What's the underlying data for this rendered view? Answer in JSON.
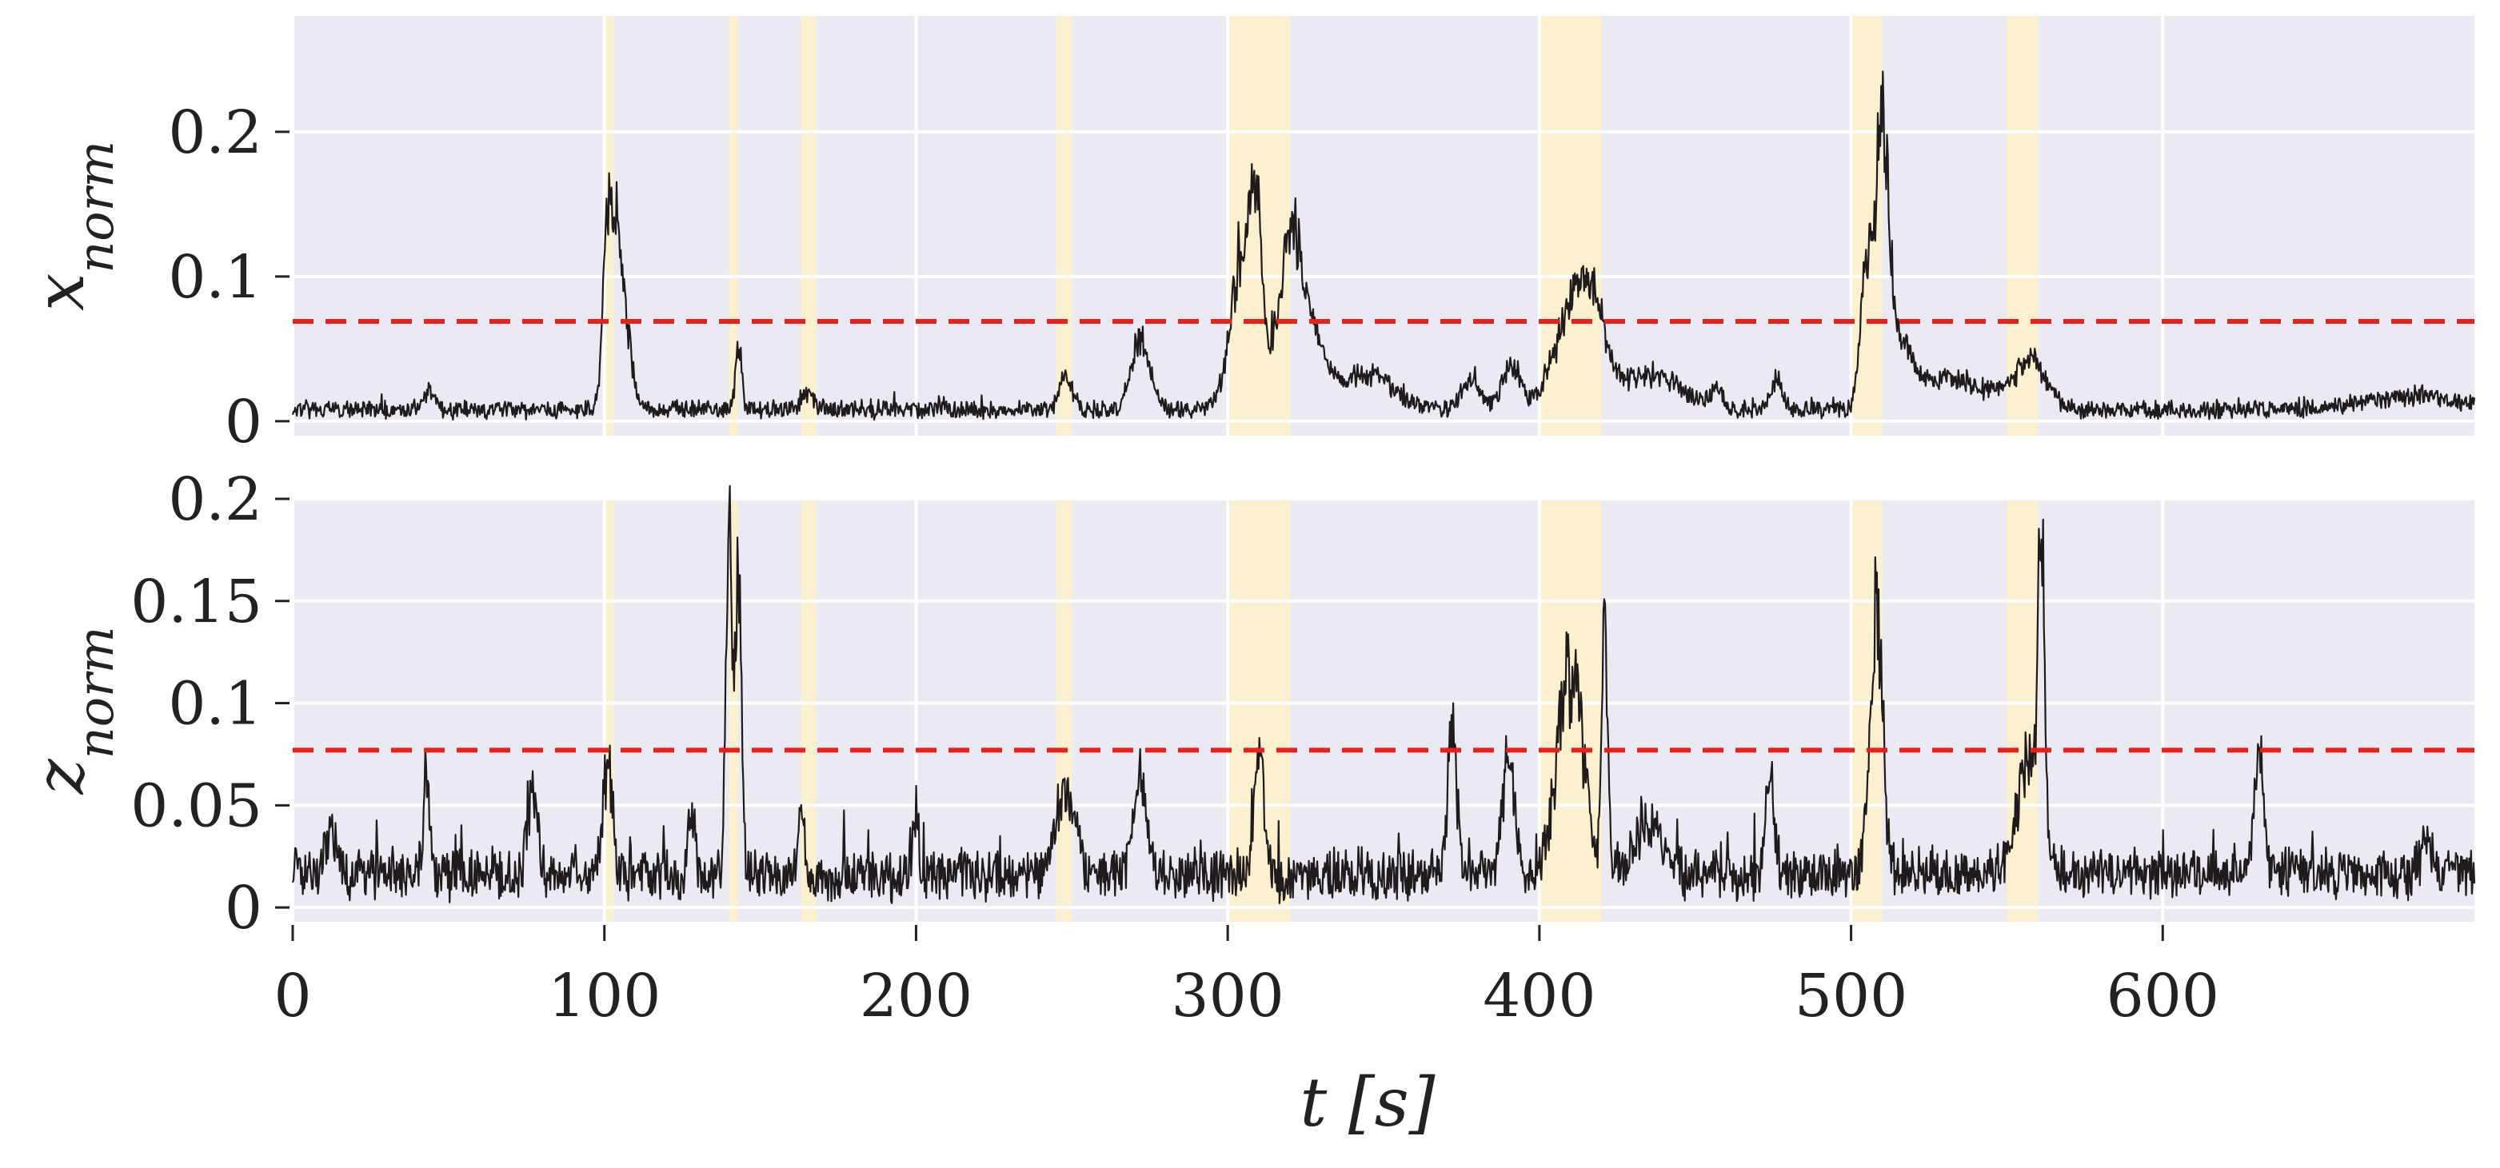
{
  "chart_data": {
    "type": "line",
    "xlabel": "t [s]",
    "xlim": [
      0,
      700
    ],
    "x_ticks": [
      0,
      100,
      200,
      300,
      400,
      500,
      600
    ],
    "x_tick_labels": [
      "0",
      "100",
      "200",
      "300",
      "400",
      "500",
      "600"
    ],
    "grid": true,
    "shaded_intervals": [
      [
        100,
        103
      ],
      [
        140,
        143
      ],
      [
        163,
        168
      ],
      [
        245,
        250
      ],
      [
        300,
        320
      ],
      [
        400,
        420
      ],
      [
        500,
        510
      ],
      [
        550,
        560
      ]
    ],
    "panels": [
      {
        "ylabel_base": "x",
        "ylabel_sub": "norm",
        "ylim": [
          -0.01,
          0.28
        ],
        "y_ticks": [
          0,
          0.1,
          0.2
        ],
        "y_tick_labels": [
          "0",
          "0.1",
          "0.2"
        ],
        "threshold": 0.069,
        "baseline_level": 0.008,
        "noise": 0.006,
        "peaks": [
          {
            "t": 44,
            "h": 0.012,
            "w": 2
          },
          {
            "t": 101,
            "h": 0.12,
            "w": 1.5
          },
          {
            "t": 104,
            "h": 0.105,
            "w": 1.5
          },
          {
            "t": 107,
            "h": 0.05,
            "w": 2
          },
          {
            "t": 143,
            "h": 0.045,
            "w": 1
          },
          {
            "t": 165,
            "h": 0.012,
            "w": 2
          },
          {
            "t": 248,
            "h": 0.025,
            "w": 2
          },
          {
            "t": 272,
            "h": 0.048,
            "w": 3
          },
          {
            "t": 305,
            "h": 0.105,
            "w": 4
          },
          {
            "t": 309,
            "h": 0.09,
            "w": 2
          },
          {
            "t": 320,
            "h": 0.105,
            "w": 4
          },
          {
            "t": 327,
            "h": 0.04,
            "w": 5
          },
          {
            "t": 345,
            "h": 0.025,
            "w": 8
          },
          {
            "t": 378,
            "h": 0.02,
            "w": 3
          },
          {
            "t": 391,
            "h": 0.03,
            "w": 3
          },
          {
            "t": 411,
            "h": 0.07,
            "w": 6
          },
          {
            "t": 418,
            "h": 0.035,
            "w": 4
          },
          {
            "t": 435,
            "h": 0.025,
            "w": 10
          },
          {
            "t": 457,
            "h": 0.012,
            "w": 2
          },
          {
            "t": 476,
            "h": 0.02,
            "w": 2
          },
          {
            "t": 505,
            "h": 0.095,
            "w": 2
          },
          {
            "t": 510,
            "h": 0.18,
            "w": 2
          },
          {
            "t": 515,
            "h": 0.04,
            "w": 4
          },
          {
            "t": 525,
            "h": 0.015,
            "w": 8
          },
          {
            "t": 540,
            "h": 0.015,
            "w": 10
          },
          {
            "t": 558,
            "h": 0.03,
            "w": 5
          },
          {
            "t": 680,
            "h": 0.01,
            "w": 15
          }
        ]
      },
      {
        "ylabel_base": "z",
        "ylabel_sub": "norm",
        "ylim": [
          -0.007,
          0.2
        ],
        "y_ticks": [
          0,
          0.05,
          0.1,
          0.15,
          0.2
        ],
        "y_tick_labels": [
          "0",
          "0.05",
          "0.1",
          "0.15",
          "0.2"
        ],
        "threshold": 0.077,
        "baseline_level": 0.016,
        "noise": 0.012,
        "peaks": [
          {
            "t": 12,
            "h": 0.02,
            "w": 2
          },
          {
            "t": 43,
            "h": 0.05,
            "w": 1
          },
          {
            "t": 77,
            "h": 0.045,
            "w": 1.5
          },
          {
            "t": 101,
            "h": 0.055,
            "w": 1.5
          },
          {
            "t": 128,
            "h": 0.03,
            "w": 1
          },
          {
            "t": 140,
            "h": 0.16,
            "w": 1
          },
          {
            "t": 143,
            "h": 0.14,
            "w": 1
          },
          {
            "t": 163,
            "h": 0.03,
            "w": 1
          },
          {
            "t": 200,
            "h": 0.03,
            "w": 1
          },
          {
            "t": 248,
            "h": 0.04,
            "w": 3
          },
          {
            "t": 272,
            "h": 0.05,
            "w": 2
          },
          {
            "t": 310,
            "h": 0.06,
            "w": 1.5
          },
          {
            "t": 372,
            "h": 0.07,
            "w": 1.5
          },
          {
            "t": 390,
            "h": 0.055,
            "w": 2
          },
          {
            "t": 410,
            "h": 0.1,
            "w": 4
          },
          {
            "t": 421,
            "h": 0.12,
            "w": 1
          },
          {
            "t": 435,
            "h": 0.025,
            "w": 5
          },
          {
            "t": 474,
            "h": 0.045,
            "w": 1.5
          },
          {
            "t": 508,
            "h": 0.13,
            "w": 2
          },
          {
            "t": 557,
            "h": 0.055,
            "w": 4
          },
          {
            "t": 561,
            "h": 0.14,
            "w": 1
          },
          {
            "t": 631,
            "h": 0.06,
            "w": 1.5
          },
          {
            "t": 685,
            "h": 0.02,
            "w": 2
          }
        ]
      }
    ]
  }
}
